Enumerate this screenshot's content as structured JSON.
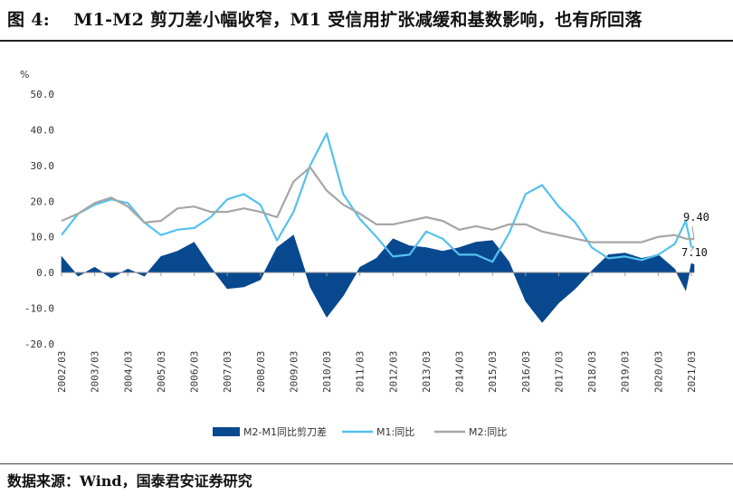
{
  "header": {
    "title": "图 4:　 M1-M2 剪刀差小幅收窄，M1 受信用扩张减缓和基数影响，也有所回落"
  },
  "footer": {
    "source": "数据来源：Wind，国泰君安证券研究"
  },
  "chart_data": {
    "type": "area+line",
    "ylabel": "%",
    "ylim": [
      -20,
      50
    ],
    "yticks": [
      "50.0",
      "40.0",
      "30.0",
      "20.0",
      "10.0",
      "0.0",
      "-10.0",
      "-20.0"
    ],
    "xticks": [
      "2002/03",
      "2003/03",
      "2004/03",
      "2005/03",
      "2006/03",
      "2007/03",
      "2008/03",
      "2009/03",
      "2010/03",
      "2011/03",
      "2012/03",
      "2013/03",
      "2014/03",
      "2015/03",
      "2016/03",
      "2017/03",
      "2018/03",
      "2019/03",
      "2020/03",
      "2021/03"
    ],
    "x_start": "2002/03",
    "x_end": "2021/04",
    "grid": false,
    "legend_position": "bottom",
    "annotations": [
      {
        "text": "9.40",
        "series": "M2:同比",
        "date": "2021/04"
      },
      {
        "text": "7.10",
        "series": "M1:同比",
        "date": "2021/04"
      }
    ],
    "series": [
      {
        "name": "M2-M1同比剪刀差",
        "type": "area",
        "color": "#08488f",
        "points": [
          [
            "2002/03",
            4.5
          ],
          [
            "2002/09",
            -1.0
          ],
          [
            "2003/03",
            1.5
          ],
          [
            "2003/09",
            -1.5
          ],
          [
            "2004/03",
            1.0
          ],
          [
            "2004/09",
            -1.0
          ],
          [
            "2005/03",
            4.5
          ],
          [
            "2005/09",
            6.0
          ],
          [
            "2006/03",
            8.5
          ],
          [
            "2006/09",
            1.5
          ],
          [
            "2007/03",
            -4.5
          ],
          [
            "2007/09",
            -4.0
          ],
          [
            "2008/03",
            -2.0
          ],
          [
            "2008/09",
            7.0
          ],
          [
            "2009/03",
            10.5
          ],
          [
            "2009/09",
            -4.0
          ],
          [
            "2010/03",
            -12.5
          ],
          [
            "2010/09",
            -6.5
          ],
          [
            "2011/03",
            1.5
          ],
          [
            "2011/09",
            4.0
          ],
          [
            "2012/03",
            9.5
          ],
          [
            "2012/09",
            7.5
          ],
          [
            "2013/03",
            7.0
          ],
          [
            "2013/09",
            6.0
          ],
          [
            "2014/03",
            7.0
          ],
          [
            "2014/09",
            8.5
          ],
          [
            "2015/03",
            9.0
          ],
          [
            "2015/09",
            3.0
          ],
          [
            "2016/03",
            -8.0
          ],
          [
            "2016/09",
            -14.0
          ],
          [
            "2017/03",
            -8.5
          ],
          [
            "2017/09",
            -4.5
          ],
          [
            "2018/03",
            0.5
          ],
          [
            "2018/09",
            5.0
          ],
          [
            "2019/03",
            5.5
          ],
          [
            "2019/09",
            4.0
          ],
          [
            "2020/03",
            5.0
          ],
          [
            "2020/09",
            1.0
          ],
          [
            "2021/01",
            -5.0
          ],
          [
            "2021/03",
            2.5
          ],
          [
            "2021/04",
            2.3
          ]
        ]
      },
      {
        "name": "M1:同比",
        "type": "line",
        "color": "#55c1ec",
        "points": [
          [
            "2002/03",
            10.5
          ],
          [
            "2002/09",
            16.5
          ],
          [
            "2003/03",
            19.0
          ],
          [
            "2003/09",
            20.5
          ],
          [
            "2004/03",
            19.5
          ],
          [
            "2004/09",
            14.0
          ],
          [
            "2005/03",
            10.5
          ],
          [
            "2005/09",
            12.0
          ],
          [
            "2006/03",
            12.5
          ],
          [
            "2006/09",
            15.5
          ],
          [
            "2007/03",
            20.5
          ],
          [
            "2007/09",
            22.0
          ],
          [
            "2008/03",
            19.0
          ],
          [
            "2008/09",
            9.0
          ],
          [
            "2009/03",
            17.0
          ],
          [
            "2009/09",
            30.0
          ],
          [
            "2010/03",
            39.0
          ],
          [
            "2010/09",
            22.0
          ],
          [
            "2011/03",
            15.0
          ],
          [
            "2011/09",
            10.0
          ],
          [
            "2012/03",
            4.5
          ],
          [
            "2012/09",
            5.0
          ],
          [
            "2013/03",
            11.5
          ],
          [
            "2013/09",
            9.5
          ],
          [
            "2014/03",
            5.0
          ],
          [
            "2014/09",
            5.0
          ],
          [
            "2015/03",
            3.0
          ],
          [
            "2015/09",
            11.0
          ],
          [
            "2016/03",
            22.0
          ],
          [
            "2016/09",
            24.5
          ],
          [
            "2017/03",
            18.5
          ],
          [
            "2017/09",
            14.0
          ],
          [
            "2018/03",
            7.0
          ],
          [
            "2018/09",
            4.0
          ],
          [
            "2019/03",
            4.5
          ],
          [
            "2019/09",
            3.5
          ],
          [
            "2020/03",
            5.0
          ],
          [
            "2020/09",
            8.0
          ],
          [
            "2021/01",
            14.5
          ],
          [
            "2021/03",
            7.3
          ],
          [
            "2021/04",
            7.1
          ]
        ]
      },
      {
        "name": "M2:同比",
        "type": "line",
        "color": "#a6a6a6",
        "points": [
          [
            "2002/03",
            14.5
          ],
          [
            "2002/09",
            16.5
          ],
          [
            "2003/03",
            19.5
          ],
          [
            "2003/09",
            21.0
          ],
          [
            "2004/03",
            18.5
          ],
          [
            "2004/09",
            14.0
          ],
          [
            "2005/03",
            14.5
          ],
          [
            "2005/09",
            18.0
          ],
          [
            "2006/03",
            18.5
          ],
          [
            "2006/09",
            17.0
          ],
          [
            "2007/03",
            17.0
          ],
          [
            "2007/09",
            18.0
          ],
          [
            "2008/03",
            17.0
          ],
          [
            "2008/09",
            15.5
          ],
          [
            "2009/03",
            25.5
          ],
          [
            "2009/09",
            29.5
          ],
          [
            "2010/03",
            23.0
          ],
          [
            "2010/09",
            19.0
          ],
          [
            "2011/03",
            16.5
          ],
          [
            "2011/09",
            13.5
          ],
          [
            "2012/03",
            13.5
          ],
          [
            "2012/09",
            14.5
          ],
          [
            "2013/03",
            15.5
          ],
          [
            "2013/09",
            14.5
          ],
          [
            "2014/03",
            12.0
          ],
          [
            "2014/09",
            13.0
          ],
          [
            "2015/03",
            12.0
          ],
          [
            "2015/09",
            13.5
          ],
          [
            "2016/03",
            13.5
          ],
          [
            "2016/09",
            11.5
          ],
          [
            "2017/03",
            10.5
          ],
          [
            "2017/09",
            9.5
          ],
          [
            "2018/03",
            8.5
          ],
          [
            "2018/09",
            8.5
          ],
          [
            "2019/03",
            8.5
          ],
          [
            "2019/09",
            8.5
          ],
          [
            "2020/03",
            10.0
          ],
          [
            "2020/09",
            10.5
          ],
          [
            "2021/01",
            9.5
          ],
          [
            "2021/03",
            9.4
          ],
          [
            "2021/04",
            9.4
          ]
        ]
      }
    ]
  }
}
